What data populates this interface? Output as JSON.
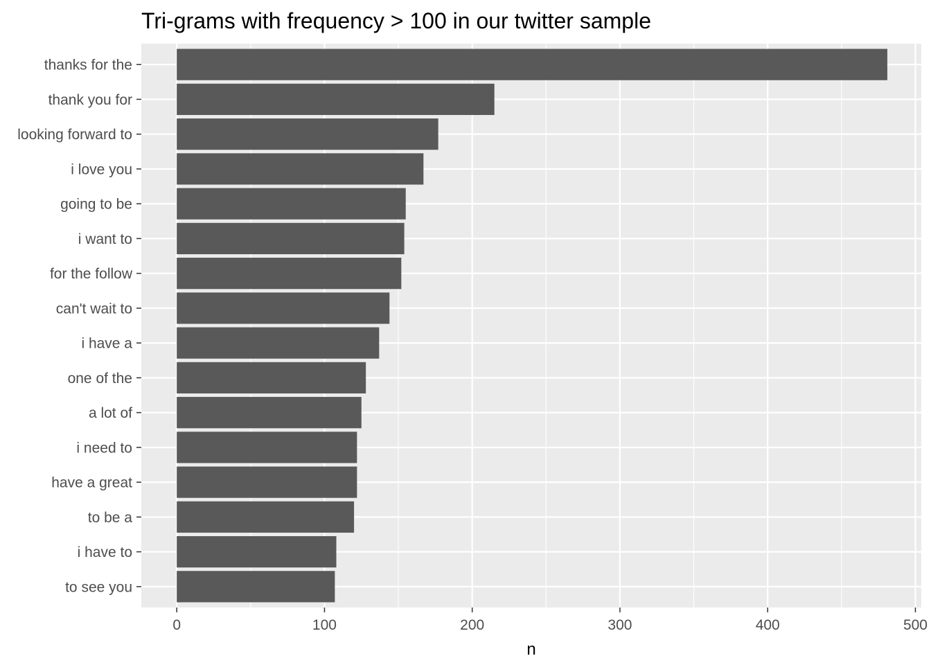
{
  "chart_data": {
    "type": "bar",
    "orientation": "horizontal",
    "title": "Tri-grams with frequency > 100 in our twitter sample",
    "xlabel": "n",
    "ylabel": "",
    "xlim": [
      -24,
      504
    ],
    "x_ticks": [
      0,
      100,
      200,
      300,
      400,
      500
    ],
    "grid": true,
    "legend": "none",
    "colors": {
      "bar": "#595959",
      "panel": "#ebebeb",
      "grid": "#ffffff",
      "tick_text": "#4d4d4d"
    },
    "categories": [
      "thanks for the",
      "thank you for",
      "looking forward to",
      "i love you",
      "going to be",
      "i want to",
      "for the follow",
      "can't wait to",
      "i have a",
      "one of the",
      "a lot of",
      "i need to",
      "have a great",
      "to be a",
      "i have to",
      "to see you"
    ],
    "values": [
      481,
      215,
      177,
      167,
      155,
      154,
      152,
      144,
      137,
      128,
      125,
      122,
      122,
      120,
      108,
      107
    ]
  }
}
